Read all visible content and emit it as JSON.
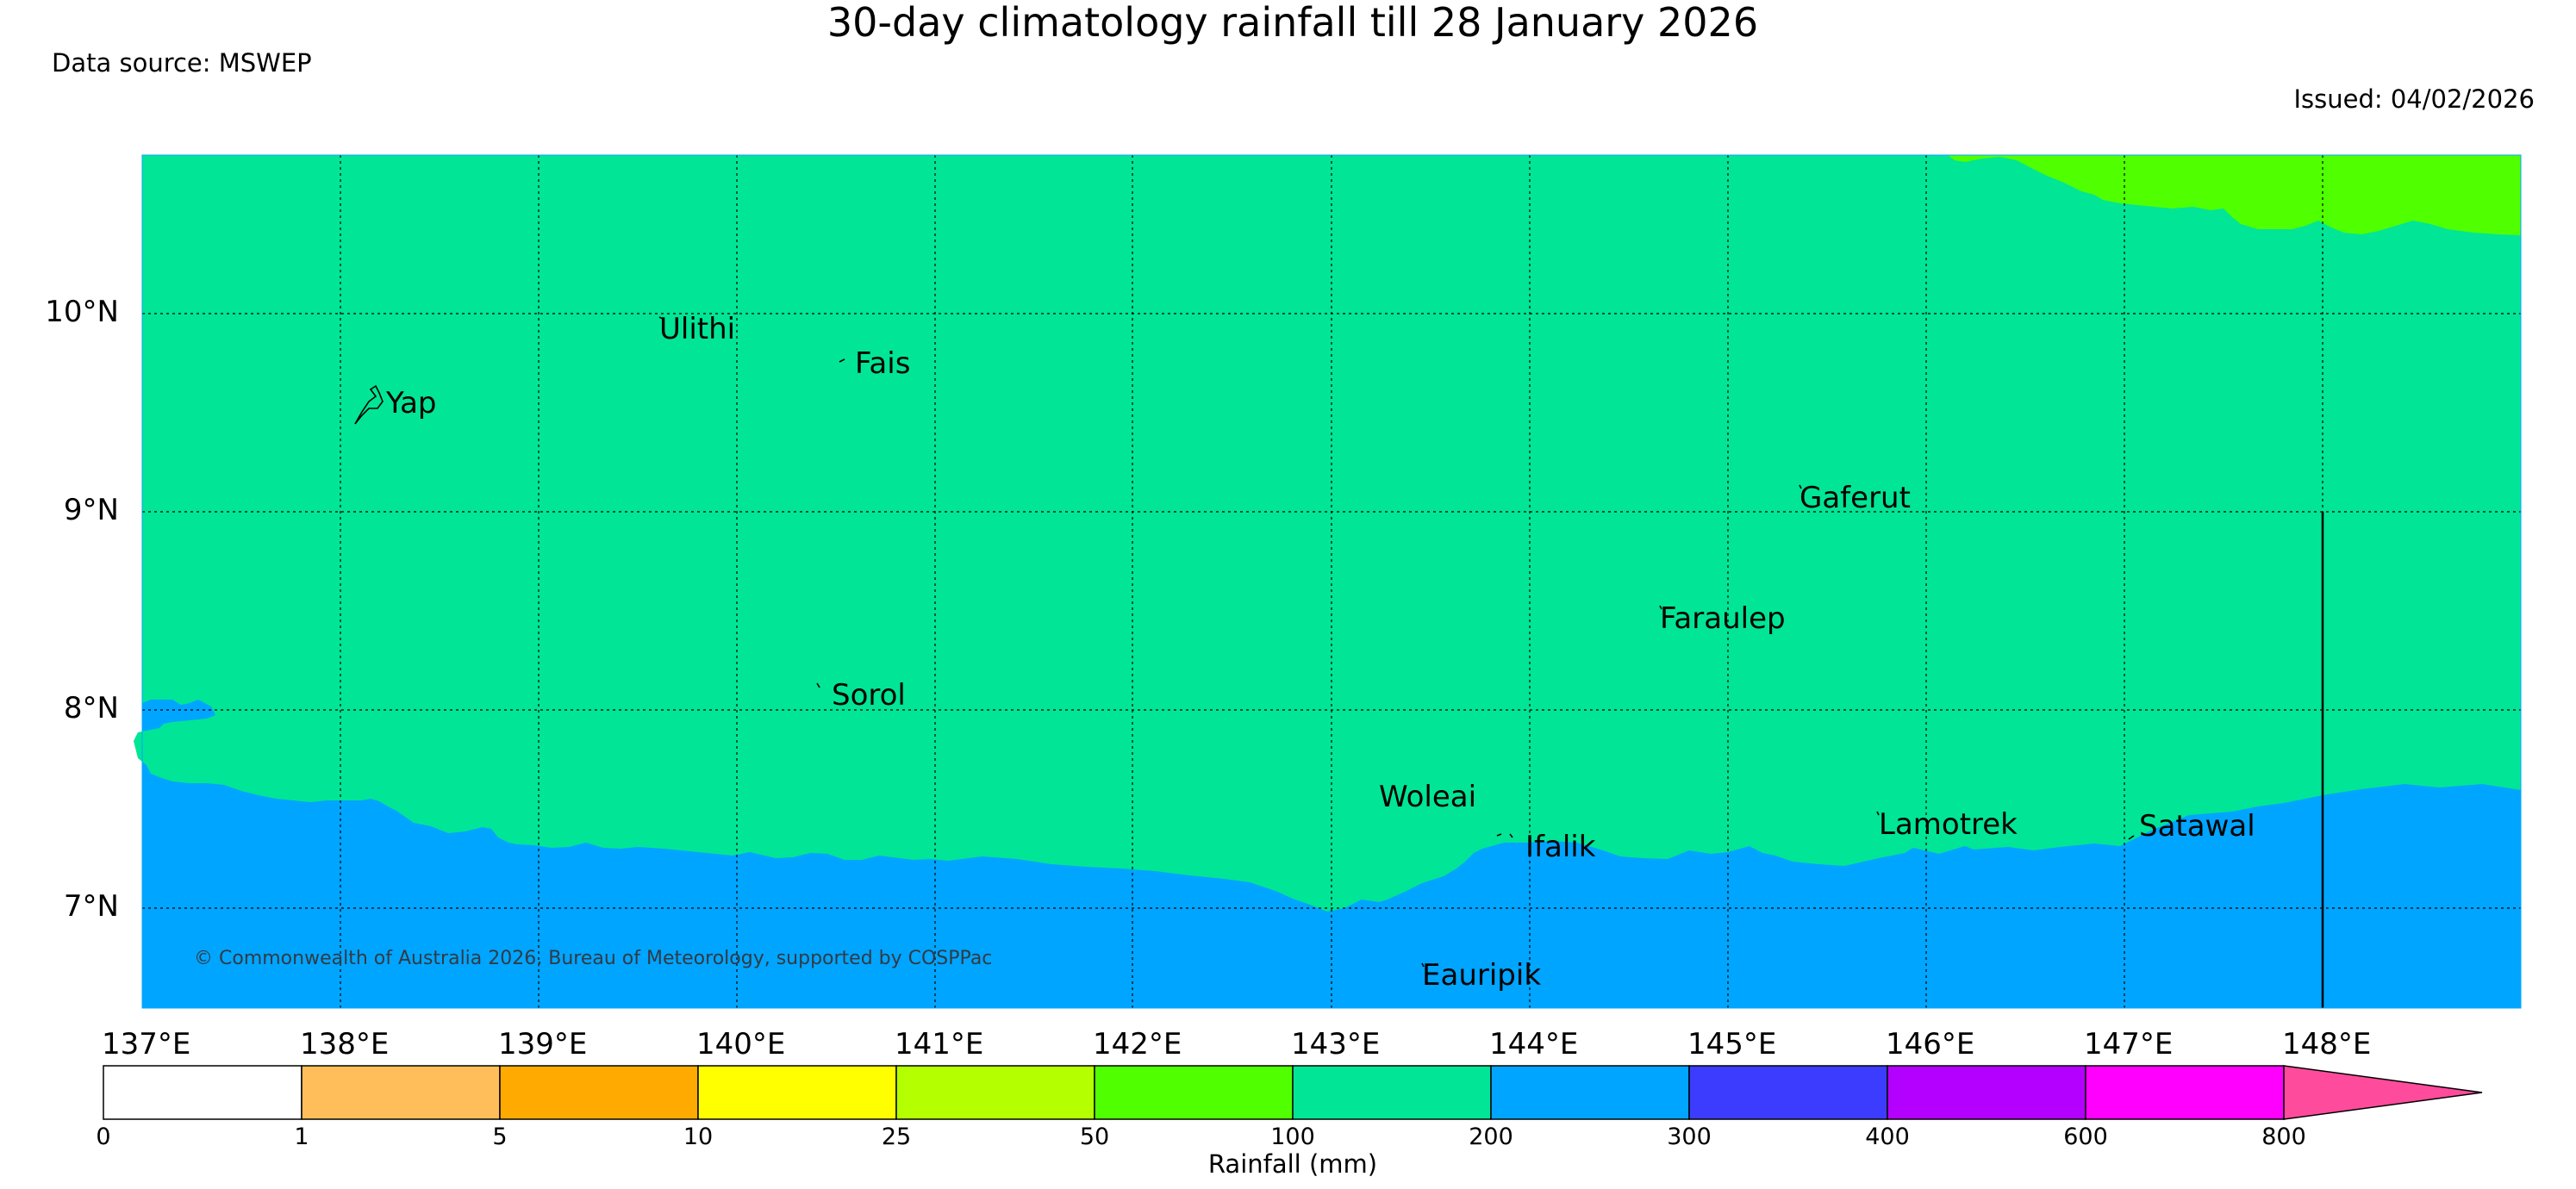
{
  "title": "30-day climatology rainfall till 28 January 2026",
  "data_source": "Data source: MSWEP",
  "issued": "Issued: 04/02/2026",
  "copyright": "© Commonwealth of Australia 2026, Bureau of Meteorology, supported by COSPPac",
  "latitude_labels": [
    "10°N",
    "9°N",
    "8°N",
    "7°N"
  ],
  "longitude_labels": [
    "137°E",
    "138°E",
    "139°E",
    "140°E",
    "141°E",
    "142°E",
    "143°E",
    "144°E",
    "145°E",
    "146°E",
    "147°E",
    "148°E"
  ],
  "places": [
    {
      "name": "Ulithi",
      "lon": 139.75,
      "lat": 9.92
    },
    {
      "name": "Fais",
      "lon": 140.52,
      "lat": 9.76
    },
    {
      "name": "Yap",
      "lon": 138.13,
      "lat": 9.53
    },
    {
      "name": "Gaferut",
      "lon": 145.38,
      "lat": 9.23
    },
    {
      "name": "Faraulep",
      "lon": 144.7,
      "lat": 8.6
    },
    {
      "name": "Sorol",
      "lon": 140.39,
      "lat": 8.14
    },
    {
      "name": "Woleai",
      "lon": 143.9,
      "lat": 7.37
    },
    {
      "name": "Ifalik",
      "lon": 144.45,
      "lat": 7.25
    },
    {
      "name": "Lamotrek",
      "lon": 146.38,
      "lat": 7.5
    },
    {
      "name": "Satawal",
      "lon": 147.03,
      "lat": 7.37
    },
    {
      "name": "Eauripik",
      "lon": 143.05,
      "lat": 6.68
    }
  ],
  "legend": {
    "label": "Rainfall (mm)",
    "ticks": [
      "0",
      "1",
      "5",
      "10",
      "25",
      "50",
      "100",
      "200",
      "300",
      "400",
      "600",
      "800"
    ],
    "colors": [
      "#ffffff",
      "#ffbe5a",
      "#ffaa00",
      "#ffff00",
      "#b4ff00",
      "#50ff00",
      "#00e696",
      "#00a5ff",
      "#3c3cff",
      "#b400ff",
      "#ff00ff",
      "#ff4b9b"
    ]
  },
  "field_colors": {
    "range_100_200": "#00e696",
    "range_200_300": "#00a5ff",
    "range_50_100": "#50ff00"
  }
}
